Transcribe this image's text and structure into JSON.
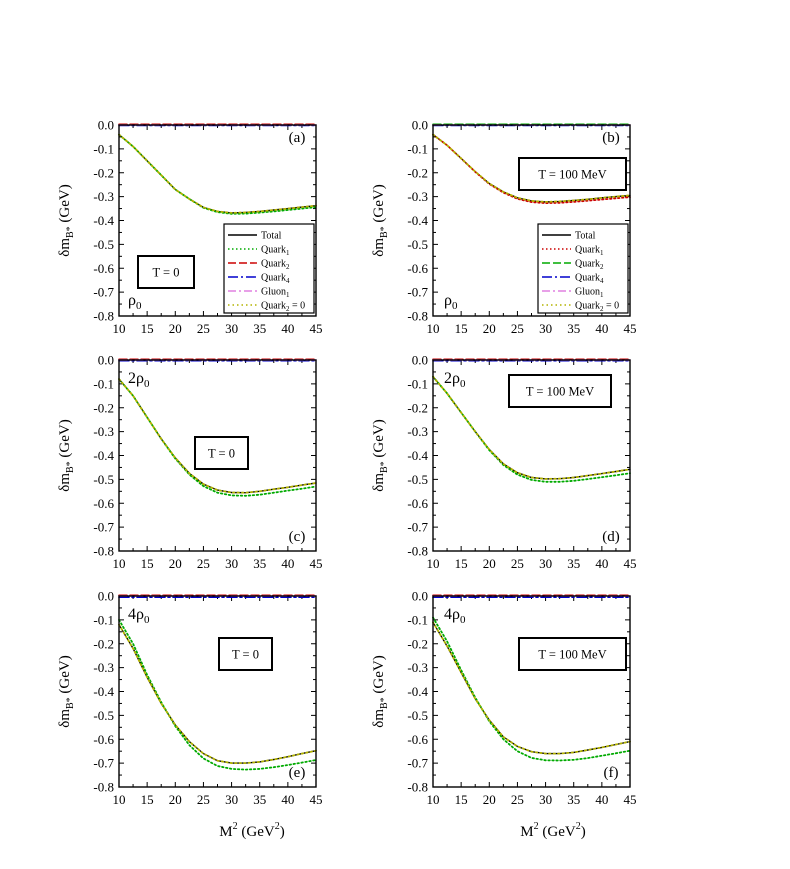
{
  "figure": {
    "ylabel": "δm",
    "ylabel_sub": "B*",
    "ylabel_unit": "(GeV)",
    "xlabel": "M",
    "xlabel_sup": "2",
    "xlabel_unit": "(GeV",
    "xlabel_unit_sup": "2",
    "xlabel_unit_close": ")"
  },
  "chart_data": [
    {
      "panel": "(a)",
      "type": "line",
      "temperature": "T = 0",
      "density": "ρ",
      "density_sub": "0",
      "xlim": [
        10,
        45
      ],
      "ylim": [
        -0.8,
        0.0
      ],
      "xticks": [
        "10",
        "15",
        "20",
        "25",
        "30",
        "35",
        "40",
        "45"
      ],
      "yticks": [
        "0.0",
        "-0.1",
        "-0.2",
        "-0.3",
        "-0.4",
        "-0.5",
        "-0.6",
        "-0.7",
        "-0.8"
      ],
      "x": [
        10,
        12.5,
        15,
        17.5,
        20,
        22.5,
        25,
        27.5,
        30,
        32.5,
        35,
        37.5,
        40,
        42.5,
        45
      ],
      "legend": [
        {
          "label": "Total",
          "sub": ""
        },
        {
          "label": "Quark",
          "sub": "1"
        },
        {
          "label": "Quark",
          "sub": "2"
        },
        {
          "label": "Quark",
          "sub": "4"
        },
        {
          "label": "Gluon",
          "sub": "1"
        },
        {
          "label": "Quark",
          "sub": "2",
          "suffix": " = 0"
        }
      ],
      "series": [
        {
          "name": "Total",
          "values": [
            -0.04,
            -0.09,
            -0.15,
            -0.21,
            -0.27,
            -0.31,
            -0.345,
            -0.362,
            -0.368,
            -0.366,
            -0.362,
            -0.356,
            -0.35,
            -0.344,
            -0.338
          ]
        },
        {
          "name": "Quark1",
          "values": [
            -0.04,
            -0.09,
            -0.15,
            -0.21,
            -0.27,
            -0.31,
            -0.347,
            -0.365,
            -0.372,
            -0.371,
            -0.367,
            -0.362,
            -0.356,
            -0.35,
            -0.344
          ]
        },
        {
          "name": "Quark2",
          "values": [
            0.003,
            0.003,
            0.003,
            0.003,
            0.003,
            0.003,
            0.003,
            0.003,
            0.003,
            0.003,
            0.003,
            0.003,
            0.003,
            0.003,
            0.003
          ]
        },
        {
          "name": "Quark4",
          "values": [
            -0.002,
            -0.002,
            -0.002,
            -0.002,
            -0.002,
            -0.002,
            -0.002,
            -0.002,
            -0.002,
            -0.002,
            -0.002,
            -0.002,
            -0.002,
            -0.002,
            -0.002
          ]
        },
        {
          "name": "Gluon1",
          "values": [
            0.0,
            0.0,
            0.0,
            0.0,
            0.0,
            0.0,
            0.0,
            0.0,
            0.0,
            0.0,
            0.0,
            0.0,
            0.0,
            0.0,
            0.0
          ]
        },
        {
          "name": "Quark2 = 0",
          "values": [
            -0.04,
            -0.09,
            -0.15,
            -0.21,
            -0.27,
            -0.31,
            -0.345,
            -0.362,
            -0.368,
            -0.366,
            -0.362,
            -0.356,
            -0.35,
            -0.344,
            -0.338
          ]
        }
      ]
    },
    {
      "panel": "(b)",
      "type": "line",
      "temperature": "T = 100 MeV",
      "density": "ρ",
      "density_sub": "0",
      "xlim": [
        10,
        45
      ],
      "ylim": [
        -0.8,
        0.0
      ],
      "xticks": [
        "10",
        "15",
        "20",
        "25",
        "30",
        "35",
        "40",
        "45"
      ],
      "yticks": [
        "0.0",
        "-0.1",
        "-0.2",
        "-0.3",
        "-0.4",
        "-0.5",
        "-0.6",
        "-0.7",
        "-0.8"
      ],
      "x": [
        10,
        12.5,
        15,
        17.5,
        20,
        22.5,
        25,
        27.5,
        30,
        32.5,
        35,
        37.5,
        40,
        42.5,
        45
      ],
      "legend": [
        {
          "label": "Total",
          "sub": ""
        },
        {
          "label": "Quark",
          "sub": "1"
        },
        {
          "label": "Quark",
          "sub": "2"
        },
        {
          "label": "Quark",
          "sub": "4"
        },
        {
          "label": "Gluon",
          "sub": "1"
        },
        {
          "label": "Quark",
          "sub": "2",
          "suffix": " = 0"
        }
      ],
      "series": [
        {
          "name": "Total",
          "values": [
            -0.04,
            -0.085,
            -0.14,
            -0.195,
            -0.245,
            -0.28,
            -0.305,
            -0.318,
            -0.322,
            -0.32,
            -0.316,
            -0.311,
            -0.305,
            -0.3,
            -0.295
          ]
        },
        {
          "name": "Quark1",
          "values": [
            -0.04,
            -0.085,
            -0.14,
            -0.196,
            -0.247,
            -0.283,
            -0.309,
            -0.323,
            -0.327,
            -0.326,
            -0.322,
            -0.317,
            -0.312,
            -0.307,
            -0.302
          ]
        },
        {
          "name": "Quark2",
          "values": [
            0.003,
            0.003,
            0.003,
            0.003,
            0.003,
            0.003,
            0.003,
            0.003,
            0.003,
            0.003,
            0.003,
            0.003,
            0.003,
            0.003,
            0.003
          ]
        },
        {
          "name": "Quark4",
          "values": [
            -0.002,
            -0.002,
            -0.002,
            -0.002,
            -0.002,
            -0.002,
            -0.002,
            -0.002,
            -0.002,
            -0.002,
            -0.002,
            -0.002,
            -0.002,
            -0.002,
            -0.002
          ]
        },
        {
          "name": "Gluon1",
          "values": [
            0.0,
            0.0,
            0.0,
            0.0,
            0.0,
            0.0,
            0.0,
            0.0,
            0.0,
            0.0,
            0.0,
            0.0,
            0.0,
            0.0,
            0.0
          ]
        },
        {
          "name": "Quark2 = 0",
          "values": [
            -0.04,
            -0.085,
            -0.14,
            -0.195,
            -0.245,
            -0.28,
            -0.305,
            -0.318,
            -0.322,
            -0.32,
            -0.316,
            -0.311,
            -0.305,
            -0.3,
            -0.295
          ]
        }
      ]
    },
    {
      "panel": "(c)",
      "type": "line",
      "temperature": "T = 0",
      "density": "2ρ",
      "density_sub": "0",
      "xlim": [
        10,
        45
      ],
      "ylim": [
        -0.8,
        0.0
      ],
      "xticks": [
        "10",
        "15",
        "20",
        "25",
        "30",
        "35",
        "40",
        "45"
      ],
      "yticks": [
        "0.0",
        "-0.1",
        "-0.2",
        "-0.3",
        "-0.4",
        "-0.5",
        "-0.6",
        "-0.7",
        "-0.8"
      ],
      "x": [
        10,
        12.5,
        15,
        17.5,
        20,
        22.5,
        25,
        27.5,
        30,
        32.5,
        35,
        37.5,
        40,
        42.5,
        45
      ],
      "series": [
        {
          "name": "Total",
          "values": [
            -0.08,
            -0.15,
            -0.24,
            -0.33,
            -0.41,
            -0.475,
            -0.52,
            -0.545,
            -0.555,
            -0.556,
            -0.55,
            -0.541,
            -0.533,
            -0.524,
            -0.515
          ]
        },
        {
          "name": "Quark1",
          "values": [
            -0.08,
            -0.15,
            -0.24,
            -0.33,
            -0.413,
            -0.48,
            -0.528,
            -0.556,
            -0.567,
            -0.569,
            -0.564,
            -0.556,
            -0.547,
            -0.539,
            -0.53
          ]
        },
        {
          "name": "Quark2",
          "values": [
            0.003,
            0.003,
            0.003,
            0.003,
            0.003,
            0.003,
            0.003,
            0.003,
            0.003,
            0.003,
            0.003,
            0.003,
            0.003,
            0.003,
            0.003
          ]
        },
        {
          "name": "Quark4",
          "values": [
            -0.003,
            -0.003,
            -0.003,
            -0.003,
            -0.003,
            -0.003,
            -0.003,
            -0.003,
            -0.003,
            -0.003,
            -0.003,
            -0.003,
            -0.003,
            -0.003,
            -0.003
          ]
        },
        {
          "name": "Gluon1",
          "values": [
            0.0,
            0.0,
            0.0,
            0.0,
            0.0,
            0.0,
            0.0,
            0.0,
            0.0,
            0.0,
            0.0,
            0.0,
            0.0,
            0.0,
            0.0
          ]
        },
        {
          "name": "Quark2 = 0",
          "values": [
            -0.08,
            -0.15,
            -0.24,
            -0.33,
            -0.41,
            -0.475,
            -0.52,
            -0.545,
            -0.555,
            -0.556,
            -0.55,
            -0.541,
            -0.533,
            -0.524,
            -0.515
          ]
        }
      ]
    },
    {
      "panel": "(d)",
      "type": "line",
      "temperature": "T = 100 MeV",
      "density": "2ρ",
      "density_sub": "0",
      "xlim": [
        10,
        45
      ],
      "ylim": [
        -0.8,
        0.0
      ],
      "xticks": [
        "10",
        "15",
        "20",
        "25",
        "30",
        "35",
        "40",
        "45"
      ],
      "yticks": [
        "0.0",
        "-0.1",
        "-0.2",
        "-0.3",
        "-0.4",
        "-0.5",
        "-0.6",
        "-0.7",
        "-0.8"
      ],
      "x": [
        10,
        12.5,
        15,
        17.5,
        20,
        22.5,
        25,
        27.5,
        30,
        32.5,
        35,
        37.5,
        40,
        42.5,
        45
      ],
      "series": [
        {
          "name": "Total",
          "values": [
            -0.07,
            -0.14,
            -0.22,
            -0.3,
            -0.375,
            -0.435,
            -0.472,
            -0.492,
            -0.498,
            -0.497,
            -0.492,
            -0.484,
            -0.476,
            -0.467,
            -0.458
          ]
        },
        {
          "name": "Quark1",
          "values": [
            -0.07,
            -0.14,
            -0.22,
            -0.3,
            -0.378,
            -0.44,
            -0.48,
            -0.502,
            -0.51,
            -0.51,
            -0.506,
            -0.499,
            -0.491,
            -0.483,
            -0.474
          ]
        },
        {
          "name": "Quark2",
          "values": [
            0.003,
            0.003,
            0.003,
            0.003,
            0.003,
            0.003,
            0.003,
            0.003,
            0.003,
            0.003,
            0.003,
            0.003,
            0.003,
            0.003,
            0.003
          ]
        },
        {
          "name": "Quark4",
          "values": [
            -0.003,
            -0.003,
            -0.003,
            -0.003,
            -0.003,
            -0.003,
            -0.003,
            -0.003,
            -0.003,
            -0.003,
            -0.003,
            -0.003,
            -0.003,
            -0.003,
            -0.003
          ]
        },
        {
          "name": "Gluon1",
          "values": [
            0.0,
            0.0,
            0.0,
            0.0,
            0.0,
            0.0,
            0.0,
            0.0,
            0.0,
            0.0,
            0.0,
            0.0,
            0.0,
            0.0,
            0.0
          ]
        },
        {
          "name": "Quark2 = 0",
          "values": [
            -0.07,
            -0.14,
            -0.22,
            -0.3,
            -0.375,
            -0.435,
            -0.472,
            -0.492,
            -0.498,
            -0.497,
            -0.492,
            -0.484,
            -0.476,
            -0.467,
            -0.458
          ]
        }
      ]
    },
    {
      "panel": "(e)",
      "type": "line",
      "temperature": "T = 0",
      "density": "4ρ",
      "density_sub": "0",
      "xlim": [
        10,
        45
      ],
      "ylim": [
        -0.8,
        0.0
      ],
      "xticks": [
        "10",
        "15",
        "20",
        "25",
        "30",
        "35",
        "40",
        "45"
      ],
      "yticks": [
        "0.0",
        "-0.1",
        "-0.2",
        "-0.3",
        "-0.4",
        "-0.5",
        "-0.6",
        "-0.7",
        "-0.8"
      ],
      "x": [
        10,
        12.5,
        15,
        17.5,
        20,
        22.5,
        25,
        27.5,
        30,
        32.5,
        35,
        37.5,
        40,
        42.5,
        45
      ],
      "series": [
        {
          "name": "Total",
          "values": [
            -0.12,
            -0.22,
            -0.34,
            -0.45,
            -0.54,
            -0.61,
            -0.66,
            -0.69,
            -0.7,
            -0.7,
            -0.695,
            -0.685,
            -0.673,
            -0.66,
            -0.648
          ]
        },
        {
          "name": "Quark1",
          "values": [
            -0.1,
            -0.2,
            -0.33,
            -0.445,
            -0.545,
            -0.625,
            -0.68,
            -0.712,
            -0.724,
            -0.727,
            -0.724,
            -0.717,
            -0.708,
            -0.698,
            -0.687
          ]
        },
        {
          "name": "Quark2",
          "values": [
            0.003,
            0.003,
            0.003,
            0.003,
            0.003,
            0.003,
            0.003,
            0.003,
            0.003,
            0.003,
            0.003,
            0.003,
            0.003,
            0.003,
            0.003
          ]
        },
        {
          "name": "Quark4",
          "values": [
            -0.005,
            -0.005,
            -0.005,
            -0.005,
            -0.005,
            -0.005,
            -0.005,
            -0.005,
            -0.005,
            -0.005,
            -0.005,
            -0.005,
            -0.005,
            -0.005,
            -0.005
          ]
        },
        {
          "name": "Gluon1",
          "values": [
            0.0,
            0.0,
            0.0,
            0.0,
            0.0,
            0.0,
            0.0,
            0.0,
            0.0,
            0.0,
            0.0,
            0.0,
            0.0,
            0.0,
            0.0
          ]
        },
        {
          "name": "Quark2 = 0",
          "values": [
            -0.12,
            -0.22,
            -0.34,
            -0.45,
            -0.54,
            -0.61,
            -0.66,
            -0.69,
            -0.7,
            -0.7,
            -0.695,
            -0.685,
            -0.673,
            -0.66,
            -0.648
          ]
        }
      ]
    },
    {
      "panel": "(f)",
      "type": "line",
      "temperature": "T = 100 MeV",
      "density": "4ρ",
      "density_sub": "0",
      "xlim": [
        10,
        45
      ],
      "ylim": [
        -0.8,
        0.0
      ],
      "xticks": [
        "10",
        "15",
        "20",
        "25",
        "30",
        "35",
        "40",
        "45"
      ],
      "yticks": [
        "0.0",
        "-0.1",
        "-0.2",
        "-0.3",
        "-0.4",
        "-0.5",
        "-0.6",
        "-0.7",
        "-0.8"
      ],
      "x": [
        10,
        12.5,
        15,
        17.5,
        20,
        22.5,
        25,
        27.5,
        30,
        32.5,
        35,
        37.5,
        40,
        42.5,
        45
      ],
      "series": [
        {
          "name": "Total",
          "values": [
            -0.11,
            -0.21,
            -0.32,
            -0.43,
            -0.52,
            -0.59,
            -0.63,
            -0.652,
            -0.66,
            -0.66,
            -0.655,
            -0.645,
            -0.634,
            -0.622,
            -0.61
          ]
        },
        {
          "name": "Quark1",
          "values": [
            -0.09,
            -0.19,
            -0.31,
            -0.425,
            -0.525,
            -0.6,
            -0.65,
            -0.678,
            -0.688,
            -0.689,
            -0.686,
            -0.679,
            -0.669,
            -0.659,
            -0.648
          ]
        },
        {
          "name": "Quark2",
          "values": [
            0.003,
            0.003,
            0.003,
            0.003,
            0.003,
            0.003,
            0.003,
            0.003,
            0.003,
            0.003,
            0.003,
            0.003,
            0.003,
            0.003,
            0.003
          ]
        },
        {
          "name": "Quark4",
          "values": [
            -0.005,
            -0.005,
            -0.005,
            -0.005,
            -0.005,
            -0.005,
            -0.005,
            -0.005,
            -0.005,
            -0.005,
            -0.005,
            -0.005,
            -0.005,
            -0.005,
            -0.005
          ]
        },
        {
          "name": "Gluon1",
          "values": [
            0.0,
            0.0,
            0.0,
            0.0,
            0.0,
            0.0,
            0.0,
            0.0,
            0.0,
            0.0,
            0.0,
            0.0,
            0.0,
            0.0,
            0.0
          ]
        },
        {
          "name": "Quark2 = 0",
          "values": [
            -0.11,
            -0.21,
            -0.32,
            -0.43,
            -0.52,
            -0.59,
            -0.63,
            -0.652,
            -0.66,
            -0.66,
            -0.655,
            -0.645,
            -0.634,
            -0.622,
            -0.61
          ]
        }
      ]
    }
  ],
  "series_styles": {
    "Total": {
      "color": "#000000",
      "dash": ""
    },
    "Quark1": {
      "color": "#00aa00",
      "dash": "1.5,2.5"
    },
    "Quark2": {
      "color": "#cc0000",
      "dash": "8,3"
    },
    "Quark4": {
      "color": "#0000cc",
      "dash": "10,3,2,3"
    },
    "Gluon1": {
      "color": "#e080e0",
      "dash": "8,3,2,3"
    },
    "Quark2 = 0": {
      "color": "#b3b300",
      "dash": "1.5,3"
    }
  },
  "legend_styles_b": {
    "Quark1": {
      "color": "#cc0000",
      "dash": "1.5,2.5"
    },
    "Quark2": {
      "color": "#00aa00",
      "dash": "8,3"
    }
  }
}
